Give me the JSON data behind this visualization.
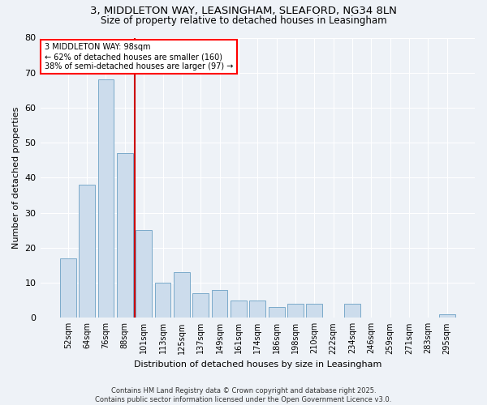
{
  "title1": "3, MIDDLETON WAY, LEASINGHAM, SLEAFORD, NG34 8LN",
  "title2": "Size of property relative to detached houses in Leasingham",
  "xlabel": "Distribution of detached houses by size in Leasingham",
  "ylabel": "Number of detached properties",
  "categories": [
    "52sqm",
    "64sqm",
    "76sqm",
    "88sqm",
    "101sqm",
    "113sqm",
    "125sqm",
    "137sqm",
    "149sqm",
    "161sqm",
    "174sqm",
    "186sqm",
    "198sqm",
    "210sqm",
    "222sqm",
    "234sqm",
    "246sqm",
    "259sqm",
    "271sqm",
    "283sqm",
    "295sqm"
  ],
  "values": [
    17,
    38,
    68,
    47,
    25,
    10,
    13,
    7,
    8,
    5,
    5,
    3,
    4,
    4,
    0,
    4,
    0,
    0,
    0,
    0,
    1
  ],
  "bar_color": "#ccdcec",
  "bar_edgecolor": "#7aaaca",
  "red_line_index": 4,
  "annotation_title": "3 MIDDLETON WAY: 98sqm",
  "annotation_line1": "← 62% of detached houses are smaller (160)",
  "annotation_line2": "38% of semi-detached houses are larger (97) →",
  "vline_color": "#cc0000",
  "ylim": [
    0,
    80
  ],
  "yticks": [
    0,
    10,
    20,
    30,
    40,
    50,
    60,
    70,
    80
  ],
  "footer1": "Contains HM Land Registry data © Crown copyright and database right 2025.",
  "footer2": "Contains public sector information licensed under the Open Government Licence v3.0.",
  "background_color": "#eef2f7",
  "plot_bg_color": "#eef2f7",
  "title1_fontsize": 9.5,
  "title2_fontsize": 8.5,
  "xlabel_fontsize": 8,
  "ylabel_fontsize": 8,
  "tick_fontsize": 7,
  "annot_fontsize": 7,
  "footer_fontsize": 6
}
